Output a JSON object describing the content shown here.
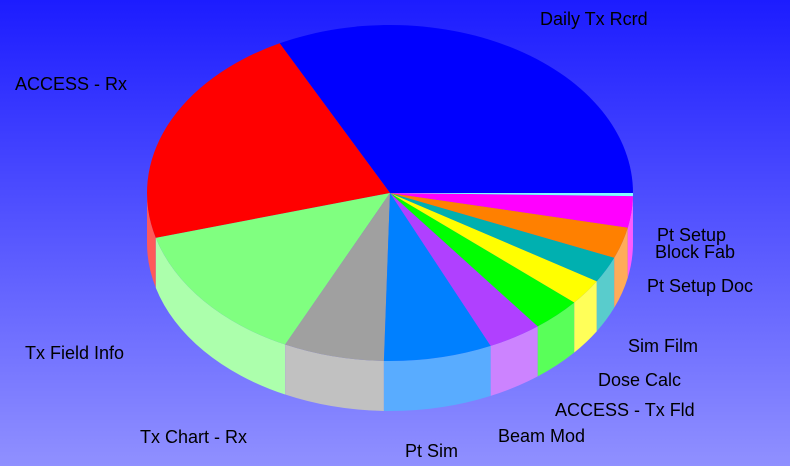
{
  "chart_data": {
    "type": "pie3d",
    "categories": [
      "Daily Tx Rcrd",
      "ACCESS - Rx",
      "Tx Field Info",
      "Tx Chart - Rx",
      "Pt Sim",
      "Beam Mod",
      "ACCESS - Tx Fld",
      "Dose Calc",
      "Sim Film",
      "Pt Setup Doc",
      "Block Fab",
      "Pt Setup"
    ],
    "values": [
      32.5,
      21.8,
      13.6,
      6.7,
      7.2,
      3.6,
      3.3,
      2.5,
      2.5,
      3,
      3,
      0.3
    ],
    "colors": [
      "#0000ff",
      "#ff0000",
      "#80ff80",
      "#a0a0a0",
      "#0080ff",
      "#b040ff",
      "#00ff00",
      "#ffff00",
      "#00b0b0",
      "#ff8000",
      "#ff00ff",
      "#80ffff"
    ]
  }
}
